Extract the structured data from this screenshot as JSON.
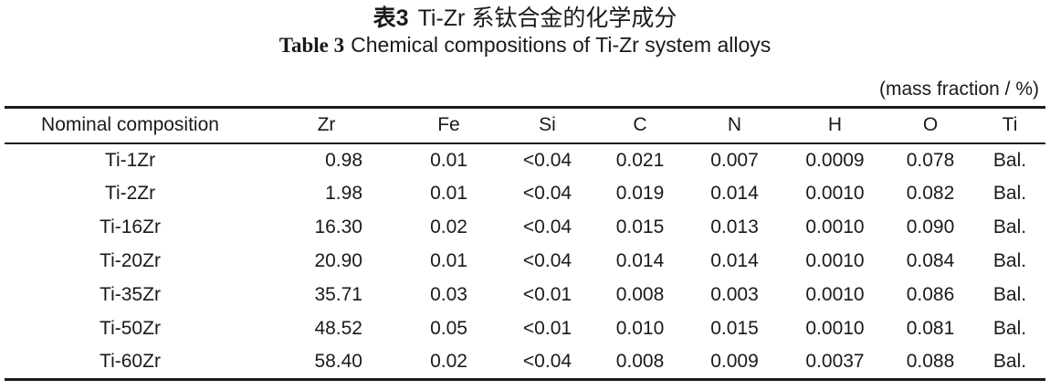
{
  "titles": {
    "chinese_label": "表3",
    "chinese_text": "Ti-Zr 系钛合金的化学成分",
    "english_label": "Table 3",
    "english_text": "Chemical compositions of Ti-Zr system alloys"
  },
  "unit_note": "(mass fraction / %)",
  "table": {
    "headers": [
      "Nominal composition",
      "Zr",
      "Fe",
      "Si",
      "C",
      "N",
      "H",
      "O",
      "Ti"
    ],
    "rows": [
      [
        "Ti-1Zr",
        "0.98",
        "0.01",
        "<0.04",
        "0.021",
        "0.007",
        "0.0009",
        "0.078",
        "Bal."
      ],
      [
        "Ti-2Zr",
        "1.98",
        "0.01",
        "<0.04",
        "0.019",
        "0.014",
        "0.0010",
        "0.082",
        "Bal."
      ],
      [
        "Ti-16Zr",
        "16.30",
        "0.02",
        "<0.04",
        "0.015",
        "0.013",
        "0.0010",
        "0.090",
        "Bal."
      ],
      [
        "Ti-20Zr",
        "20.90",
        "0.01",
        "<0.04",
        "0.014",
        "0.014",
        "0.0010",
        "0.084",
        "Bal."
      ],
      [
        "Ti-35Zr",
        "35.71",
        "0.03",
        "<0.01",
        "0.008",
        "0.003",
        "0.0010",
        "0.086",
        "Bal."
      ],
      [
        "Ti-50Zr",
        "48.52",
        "0.05",
        "<0.01",
        "0.010",
        "0.015",
        "0.0010",
        "0.081",
        "Bal."
      ],
      [
        "Ti-60Zr",
        "58.40",
        "0.02",
        "<0.04",
        "0.008",
        "0.009",
        "0.0037",
        "0.088",
        "Bal."
      ]
    ]
  },
  "colors": {
    "background": "#ffffff",
    "text": "#1a1a1a",
    "rule": "#1a1a1a"
  }
}
